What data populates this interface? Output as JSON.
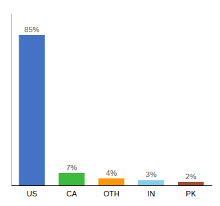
{
  "chart_data": {
    "type": "bar",
    "categories": [
      "US",
      "CA",
      "OTH",
      "IN",
      "PK"
    ],
    "values": [
      85,
      7,
      4,
      3,
      2
    ],
    "value_labels": [
      "85%",
      "7%",
      "4%",
      "3%",
      "2%"
    ],
    "colors": [
      "#4472C4",
      "#3CBB3C",
      "#FF9800",
      "#87CEEB",
      "#A0522D"
    ],
    "ylim": [
      0,
      97
    ],
    "data_labels": true,
    "tick_labels": "x",
    "grid": false
  }
}
